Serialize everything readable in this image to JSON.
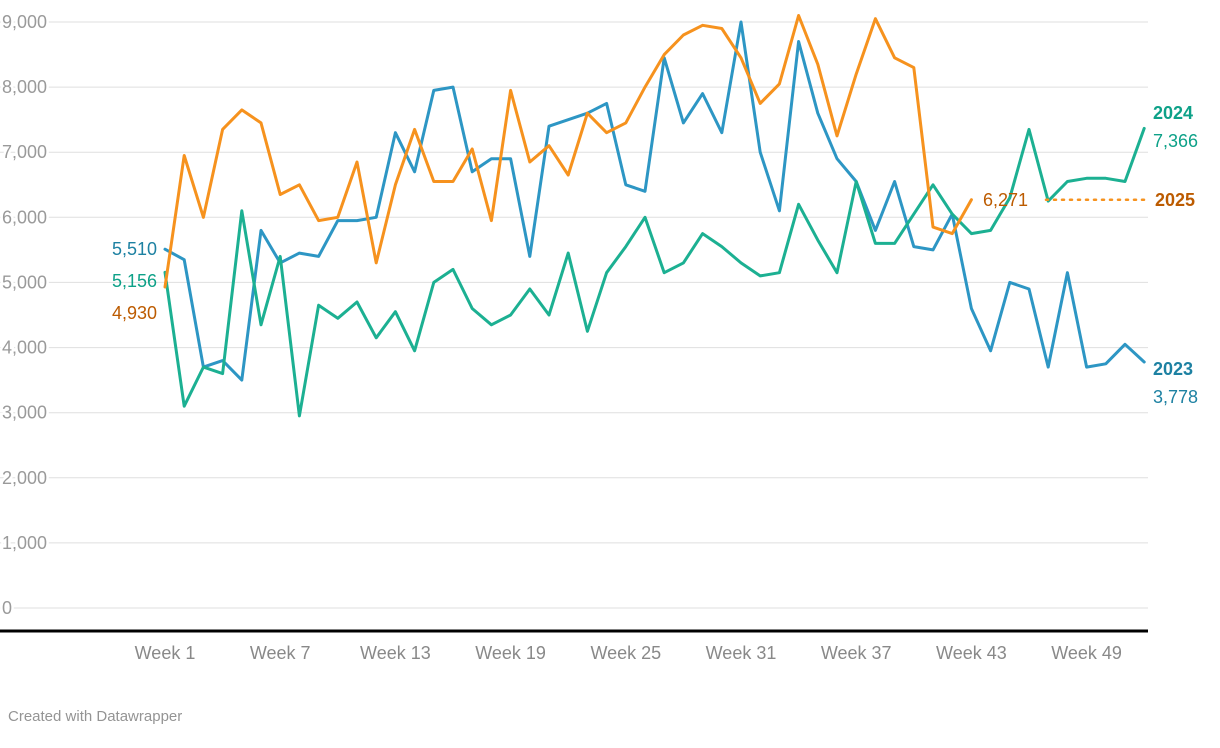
{
  "footer": {
    "attribution": "Created with Datawrapper"
  },
  "chart_data": {
    "type": "line",
    "title": "",
    "xlabel": "",
    "ylabel": "",
    "x_unit": "week",
    "xlim_weeks": [
      1,
      52
    ],
    "ylim": [
      0,
      9000
    ],
    "grid": true,
    "legend_position": "right-inline",
    "colors": {
      "gridline": "#dfdfdf",
      "axis_line": "#000000",
      "y_tick_text": "#9a9a9a",
      "x_tick_text": "#898989"
    },
    "y_ticks": [
      {
        "value": 0,
        "label": "0"
      },
      {
        "value": 1000,
        "label": "1,000"
      },
      {
        "value": 2000,
        "label": "2,000"
      },
      {
        "value": 3000,
        "label": "3,000"
      },
      {
        "value": 4000,
        "label": "4,000"
      },
      {
        "value": 5000,
        "label": "5,000"
      },
      {
        "value": 6000,
        "label": "6,000"
      },
      {
        "value": 7000,
        "label": "7,000"
      },
      {
        "value": 8000,
        "label": "8,000"
      },
      {
        "value": 9000,
        "label": "9,000"
      }
    ],
    "x_tick_labels": [
      {
        "week": 1,
        "label": "Week 1"
      },
      {
        "week": 7,
        "label": "Week 7"
      },
      {
        "week": 13,
        "label": "Week 13"
      },
      {
        "week": 19,
        "label": "Week 19"
      },
      {
        "week": 25,
        "label": "Week 25"
      },
      {
        "week": 31,
        "label": "Week 31"
      },
      {
        "week": 37,
        "label": "Week 37"
      },
      {
        "week": 43,
        "label": "Week 43"
      },
      {
        "week": 49,
        "label": "Week 49"
      }
    ],
    "series": [
      {
        "name": "2023",
        "color": "#2d96c4",
        "label_color": "#1d81a2",
        "start_label": "5,510",
        "end_label": "3,778",
        "values": [
          5510,
          5350,
          3700,
          3800,
          3500,
          5800,
          5300,
          5450,
          5400,
          5950,
          5950,
          6000,
          7300,
          6700,
          7950,
          8000,
          6700,
          6900,
          6900,
          5400,
          7400,
          7500,
          7600,
          7750,
          6500,
          6400,
          8450,
          7450,
          7900,
          7300,
          9000,
          7000,
          6100,
          8700,
          7600,
          6900,
          6550,
          5800,
          6550,
          5550,
          5500,
          6050,
          4600,
          3950,
          5000,
          4900,
          3700,
          5150,
          3700,
          3750,
          4050,
          3778
        ]
      },
      {
        "name": "2024",
        "color": "#1cb092",
        "label_color": "#0da188",
        "start_label": "5,156",
        "end_label": "7,366",
        "values": [
          5156,
          3100,
          3700,
          3600,
          6100,
          4350,
          5400,
          2950,
          4650,
          4450,
          4700,
          4150,
          4550,
          3950,
          5000,
          5200,
          4600,
          4350,
          4500,
          4900,
          4500,
          5450,
          4250,
          5150,
          5550,
          6000,
          5150,
          5300,
          5750,
          5550,
          5300,
          5100,
          5150,
          6200,
          5650,
          5150,
          6550,
          5600,
          5600,
          6050,
          6500,
          6050,
          5750,
          5800,
          6300,
          7350,
          6250,
          6550,
          6600,
          6600,
          6550,
          7366
        ]
      },
      {
        "name": "2025",
        "color": "#f6921e",
        "label_color": "#bc5b00",
        "start_label": "4,930",
        "end_label": null,
        "annotation": {
          "label": "6,271",
          "value": 6271,
          "style": "dotted-leader"
        },
        "values": [
          4930,
          6950,
          6000,
          7350,
          7650,
          7450,
          6350,
          6500,
          5950,
          6000,
          6850,
          5300,
          6500,
          7350,
          6550,
          6550,
          7050,
          5950,
          7950,
          6850,
          7100,
          6650,
          7600,
          7300,
          7450,
          8000,
          8500,
          8800,
          8950,
          8900,
          8450,
          7750,
          8050,
          9100,
          8350,
          7250,
          8200,
          9050,
          8450,
          8300,
          5850,
          5750,
          6271
        ]
      }
    ]
  }
}
